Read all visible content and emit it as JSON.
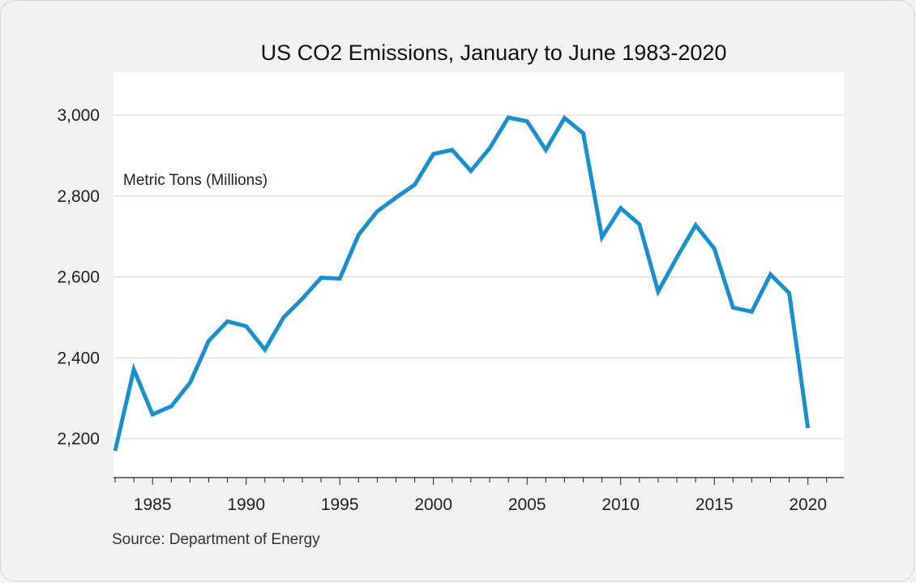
{
  "chart_data": {
    "type": "line",
    "title": "US CO2 Emissions, January to June 1983-2020",
    "ylabel": "Metric Tons (Millions)",
    "xlabel": "",
    "source": "Source: Department of Energy",
    "color": "#1a8fcf",
    "grid": true,
    "ylim": [
      2100,
      3100
    ],
    "xlim": [
      1983,
      2021
    ],
    "yticks": [
      2200,
      2400,
      2600,
      2800,
      3000
    ],
    "ytick_labels": [
      "2,200",
      "2,400",
      "2,600",
      "2,800",
      "3,000"
    ],
    "xticks": [
      1985,
      1990,
      1995,
      2000,
      2005,
      2010,
      2015,
      2020
    ],
    "xtick_labels": [
      "1985",
      "1990",
      "1995",
      "2000",
      "2005",
      "2010",
      "2015",
      "2020"
    ],
    "x": [
      1983,
      1984,
      1985,
      1986,
      1987,
      1988,
      1989,
      1990,
      1991,
      1992,
      1993,
      1994,
      1995,
      1996,
      1997,
      1998,
      1999,
      2000,
      2001,
      2002,
      2003,
      2004,
      2005,
      2006,
      2007,
      2008,
      2009,
      2010,
      2011,
      2012,
      2013,
      2014,
      2015,
      2016,
      2017,
      2018,
      2019,
      2020
    ],
    "series": [
      {
        "values": [
          2170,
          2371,
          2260,
          2280,
          2338,
          2442,
          2490,
          2478,
          2420,
          2500,
          2546,
          2598,
          2596,
          2704,
          2762,
          2796,
          2828,
          2904,
          2914,
          2862,
          2918,
          2994,
          2985,
          2914,
          2993,
          2955,
          2698,
          2770,
          2730,
          2564,
          2648,
          2728,
          2670,
          2524,
          2514,
          2606,
          2560,
          2226
        ]
      }
    ]
  }
}
